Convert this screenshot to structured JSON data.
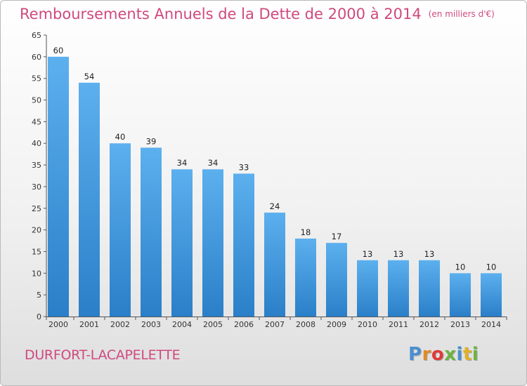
{
  "header": {
    "title": "Remboursements Annuels de la Dette de 2000 à 2014",
    "unit": "(en milliers d'€)"
  },
  "footer": {
    "commune": "DURFORT-LACAPELETTE",
    "logo": "Proxiti",
    "logo_colors": [
      "#4a8fd1",
      "#e08a2a",
      "#e03a3a",
      "#6cb33f",
      "#4a8fd1",
      "#e0b02a",
      "#6cb33f"
    ]
  },
  "chart_data": {
    "type": "bar",
    "title": "Remboursements Annuels de la Dette de 2000 à 2014",
    "ylabel": "en milliers d'€",
    "xlabel": "",
    "categories": [
      "2000",
      "2001",
      "2002",
      "2003",
      "2004",
      "2005",
      "2006",
      "2007",
      "2008",
      "2009",
      "2010",
      "2011",
      "2012",
      "2013",
      "2014"
    ],
    "values": [
      60,
      54,
      40,
      39,
      34,
      34,
      33,
      24,
      18,
      17,
      13,
      13,
      13,
      10,
      10
    ],
    "ylim": [
      0,
      65
    ],
    "yticks": [
      0,
      5,
      10,
      15,
      20,
      25,
      30,
      35,
      40,
      45,
      50,
      55,
      60,
      65
    ],
    "grid": false,
    "bar_color": "#4a9de0"
  }
}
